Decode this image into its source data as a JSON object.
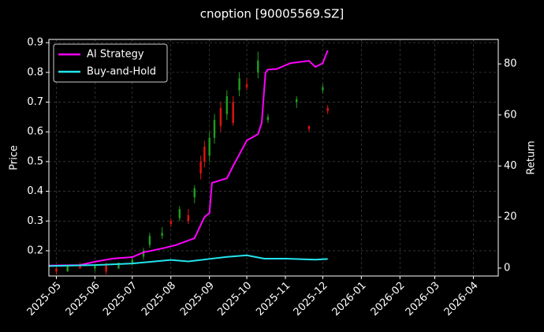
{
  "chart_data": {
    "type": "candlestick",
    "title": "cnoption [90005569.SZ]",
    "ylabel": "Price",
    "y2label": "Return",
    "grid": true,
    "legend": "upper left",
    "up_color": "#1f9e1f",
    "down_color": "#e01414",
    "xlim": [
      "2025-04-25",
      "2026-04-21"
    ],
    "xticks": [
      {
        "value": "2025-05-01",
        "label": "2025-05"
      },
      {
        "value": "2025-06-01",
        "label": "2025-06"
      },
      {
        "value": "2025-07-01",
        "label": "2025-07"
      },
      {
        "value": "2025-08-01",
        "label": "2025-08"
      },
      {
        "value": "2025-09-01",
        "label": "2025-09"
      },
      {
        "value": "2025-10-01",
        "label": "2025-10"
      },
      {
        "value": "2025-11-01",
        "label": "2025-11"
      },
      {
        "value": "2025-12-01",
        "label": "2025-12"
      },
      {
        "value": "2026-01-01",
        "label": "2026-01"
      },
      {
        "value": "2026-02-01",
        "label": "2026-02"
      },
      {
        "value": "2026-03-01",
        "label": "2026-03"
      },
      {
        "value": "2026-04-01",
        "label": "2026-04"
      }
    ],
    "ylim": [
      0.115,
      0.911
    ],
    "yticks": [
      0.2,
      0.3,
      0.4,
      0.5,
      0.6,
      0.7,
      0.8,
      0.9
    ],
    "y2lim": [
      -3.1,
      89.6
    ],
    "y2ticks": [
      0,
      20,
      40,
      60,
      80
    ],
    "x": [
      "2025-05-01",
      "2025-05-10",
      "2025-05-20",
      "2025-06-01",
      "2025-06-10",
      "2025-06-20",
      "2025-07-01",
      "2025-07-10",
      "2025-07-15",
      "2025-07-25",
      "2025-08-01",
      "2025-08-08",
      "2025-08-15",
      "2025-08-20",
      "2025-08-25",
      "2025-08-28",
      "2025-09-01",
      "2025-09-05",
      "2025-09-10",
      "2025-09-15",
      "2025-09-20",
      "2025-09-25",
      "2025-10-01",
      "2025-10-10",
      "2025-10-18",
      "2025-11-10",
      "2025-11-20",
      "2025-12-01",
      "2025-12-05"
    ],
    "open": [
      0.14,
      0.13,
      0.15,
      0.14,
      0.15,
      0.14,
      0.16,
      0.18,
      0.22,
      0.25,
      0.3,
      0.31,
      0.32,
      0.38,
      0.5,
      0.55,
      0.52,
      0.58,
      0.68,
      0.66,
      0.7,
      0.74,
      0.76,
      0.8,
      0.64,
      0.7,
      0.62,
      0.74,
      0.68
    ],
    "high": [
      0.15,
      0.15,
      0.16,
      0.15,
      0.16,
      0.16,
      0.18,
      0.21,
      0.26,
      0.28,
      0.31,
      0.35,
      0.34,
      0.42,
      0.52,
      0.57,
      0.6,
      0.66,
      0.7,
      0.74,
      0.72,
      0.8,
      0.78,
      0.87,
      0.66,
      0.72,
      0.62,
      0.76,
      0.69
    ],
    "low": [
      0.12,
      0.13,
      0.14,
      0.13,
      0.12,
      0.14,
      0.15,
      0.17,
      0.21,
      0.24,
      0.28,
      0.3,
      0.29,
      0.36,
      0.44,
      0.48,
      0.5,
      0.56,
      0.6,
      0.64,
      0.62,
      0.72,
      0.74,
      0.78,
      0.63,
      0.68,
      0.6,
      0.73,
      0.66
    ],
    "close": [
      0.13,
      0.15,
      0.14,
      0.15,
      0.13,
      0.16,
      0.17,
      0.2,
      0.25,
      0.26,
      0.29,
      0.34,
      0.3,
      0.41,
      0.46,
      0.5,
      0.58,
      0.64,
      0.62,
      0.72,
      0.63,
      0.78,
      0.75,
      0.84,
      0.65,
      0.71,
      0.61,
      0.75,
      0.67
    ],
    "series": [
      {
        "name": "AI Strategy",
        "color": "#ff00ff",
        "axis": "y2",
        "x": [
          "2025-04-25",
          "2025-05-20",
          "2025-06-01",
          "2025-06-15",
          "2025-07-01",
          "2025-07-10",
          "2025-07-25",
          "2025-08-05",
          "2025-08-20",
          "2025-08-28",
          "2025-09-01",
          "2025-09-03",
          "2025-09-15",
          "2025-09-20",
          "2025-09-25",
          "2025-10-01",
          "2025-10-10",
          "2025-10-13",
          "2025-10-16",
          "2025-10-18",
          "2025-10-25",
          "2025-11-05",
          "2025-11-20",
          "2025-11-25",
          "2025-12-01",
          "2025-12-05"
        ],
        "values": [
          1,
          1.2,
          2.5,
          3.7,
          4.3,
          6.2,
          7.7,
          9,
          11.7,
          20,
          21.6,
          33.4,
          35.2,
          40,
          44.5,
          50,
          52.5,
          57,
          76.6,
          77.8,
          78,
          80.3,
          81.2,
          78.8,
          80.3,
          85.3
        ]
      },
      {
        "name": "Buy-and-Hold",
        "color": "#22e5ee",
        "axis": "y2",
        "x": [
          "2025-04-25",
          "2025-06-01",
          "2025-07-01",
          "2025-08-01",
          "2025-08-15",
          "2025-09-01",
          "2025-09-15",
          "2025-10-01",
          "2025-10-15",
          "2025-11-01",
          "2025-11-25",
          "2025-12-05"
        ],
        "values": [
          0.8,
          1.2,
          1.8,
          3.2,
          2.6,
          3.6,
          4.4,
          5.0,
          3.7,
          3.7,
          3.3,
          3.6
        ]
      }
    ]
  }
}
